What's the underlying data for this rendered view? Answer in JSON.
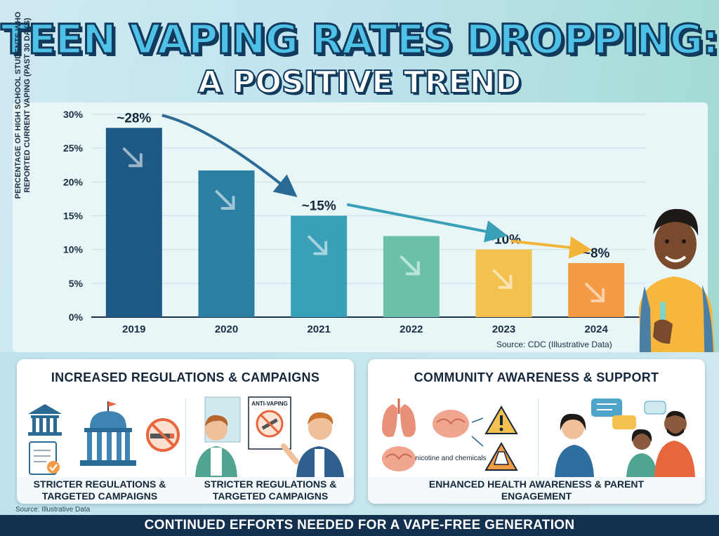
{
  "title": {
    "line1": "TEEN VAPING RATES DROPPING:",
    "line2": "A POSITIVE TREND"
  },
  "chart_data": {
    "type": "bar",
    "title": "",
    "categories": [
      "2019",
      "2020",
      "2021",
      "2022",
      "2023",
      "2024"
    ],
    "values": [
      28,
      21.7,
      15,
      12,
      10,
      8
    ],
    "data_labels": [
      "~28%",
      "",
      "~15%",
      "",
      "~10%",
      "~8%"
    ],
    "bar_colors": [
      "#1f5a86",
      "#2b7fa3",
      "#3aa0b8",
      "#6cc2a8",
      "#f2c14e",
      "#f39a45"
    ],
    "ylabel": "PERCENTAGE OF HIGH SCHOOL STUDENTS WHO REPORTED CURRENT VAPING (PAST 30 DAYS)",
    "yticks": [
      "30%",
      "25%",
      "20%",
      "15%",
      "10%",
      "5%",
      "0%"
    ],
    "ylim": [
      0,
      30
    ],
    "grid": true,
    "source": "Source: CDC (Illustrative Data)"
  },
  "panels": {
    "left": {
      "title": "INCREASED REGULATIONS & CAMPAIGNS",
      "captions": [
        "STRICTER REGULATIONS & TARGETED CAMPAIGNS",
        "STRICTER REGULATIONS & TARGETED CAMPAIGNS"
      ],
      "poster_text": "ANTI-VAPING"
    },
    "right": {
      "title": "COMMUNITY AWARENESS & SUPPORT",
      "caption": "ENHANCED HEALTH AWARENESS & PARENT ENGAGEMENT",
      "brain_label": "nicotine and chemicals"
    }
  },
  "source_bottom": "Source: Illustrative Data",
  "footer": "CONTINUED EFFORTS NEEDED FOR A VAPE-FREE GENERATION",
  "colors": {
    "navy": "#14304f",
    "accent_blue": "#4fc0e6",
    "panel_bg": "#e9f6f7"
  }
}
